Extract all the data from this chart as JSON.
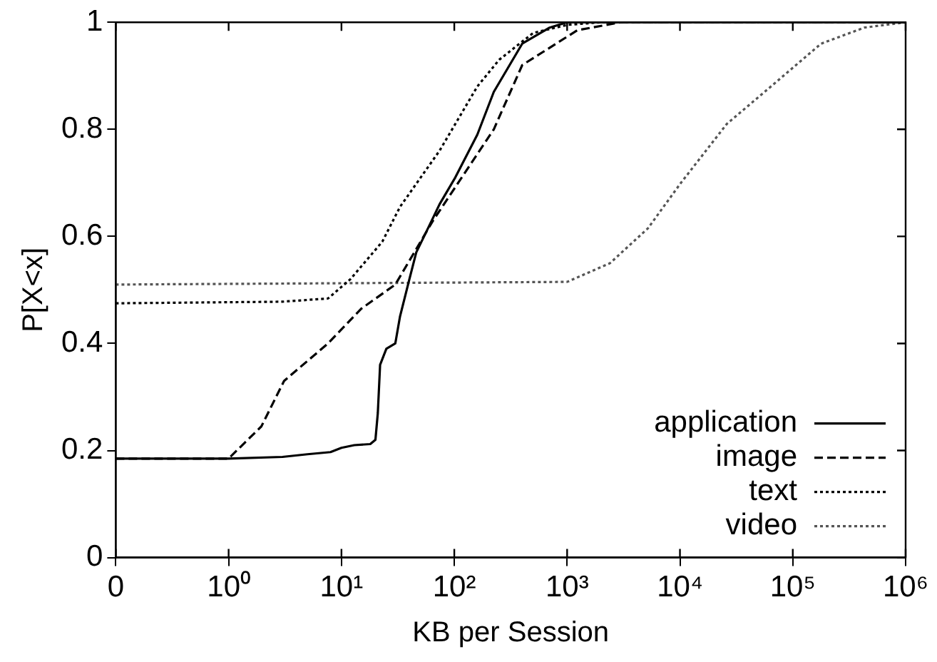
{
  "chart_data": {
    "type": "line",
    "xlabel": "KB per Session",
    "ylabel": "P[X<x]",
    "log": "x",
    "xlim": [
      0.1,
      1000000
    ],
    "xticks": [
      {
        "value": 0.1,
        "label": "0"
      },
      {
        "value": 1,
        "label": "10⁰"
      },
      {
        "value": 10,
        "label": "10¹"
      },
      {
        "value": 100,
        "label": "10²"
      },
      {
        "value": 1000,
        "label": "10³"
      },
      {
        "value": 10000,
        "label": "10⁴"
      },
      {
        "value": 100000,
        "label": "10⁵"
      },
      {
        "value": 1000000,
        "label": "10⁶"
      }
    ],
    "ylim": [
      0,
      1
    ],
    "yticks": [
      0,
      0.2,
      0.4,
      0.6,
      0.8,
      1
    ],
    "grid": false,
    "legend": "bottom right",
    "marker": "none",
    "series": [
      {
        "name": "application",
        "color": "#000000",
        "line_style": "solid",
        "x": [
          0.1,
          1,
          3,
          5,
          8,
          10,
          13,
          18,
          20,
          21,
          22,
          25,
          30,
          33,
          40,
          46,
          60,
          74,
          102,
          160,
          224,
          400,
          700,
          1000,
          1000000
        ],
        "values": [
          0.185,
          0.185,
          0.188,
          0.193,
          0.197,
          0.205,
          0.21,
          0.212,
          0.22,
          0.27,
          0.36,
          0.39,
          0.4,
          0.45,
          0.52,
          0.57,
          0.62,
          0.66,
          0.71,
          0.79,
          0.87,
          0.96,
          0.99,
          1,
          1
        ]
      },
      {
        "name": "image",
        "color": "#000000",
        "line_style": "dashed",
        "x": [
          0.1,
          1,
          1.95,
          3.1,
          7.6,
          15,
          30,
          65,
          224,
          400,
          1230,
          3000,
          1000000
        ],
        "values": [
          0.185,
          0.185,
          0.245,
          0.33,
          0.4,
          0.465,
          0.51,
          0.63,
          0.8,
          0.92,
          0.985,
          1,
          1
        ]
      },
      {
        "name": "text",
        "color": "#000000",
        "line_style": "dotted",
        "x": [
          0.1,
          3,
          7.6,
          12,
          23,
          33,
          74,
          160,
          250,
          500,
          1000,
          2000,
          1000000
        ],
        "values": [
          0.475,
          0.478,
          0.484,
          0.52,
          0.59,
          0.655,
          0.76,
          0.88,
          0.93,
          0.98,
          0.995,
          1,
          1
        ]
      },
      {
        "name": "video",
        "color": "#555555",
        "line_style": "dotted",
        "x": [
          0.1,
          1000,
          2400,
          5200,
          10200,
          26000,
          64000,
          178000,
          430000,
          1000000
        ],
        "values": [
          0.51,
          0.515,
          0.55,
          0.615,
          0.7,
          0.81,
          0.88,
          0.96,
          0.99,
          1
        ]
      }
    ]
  }
}
